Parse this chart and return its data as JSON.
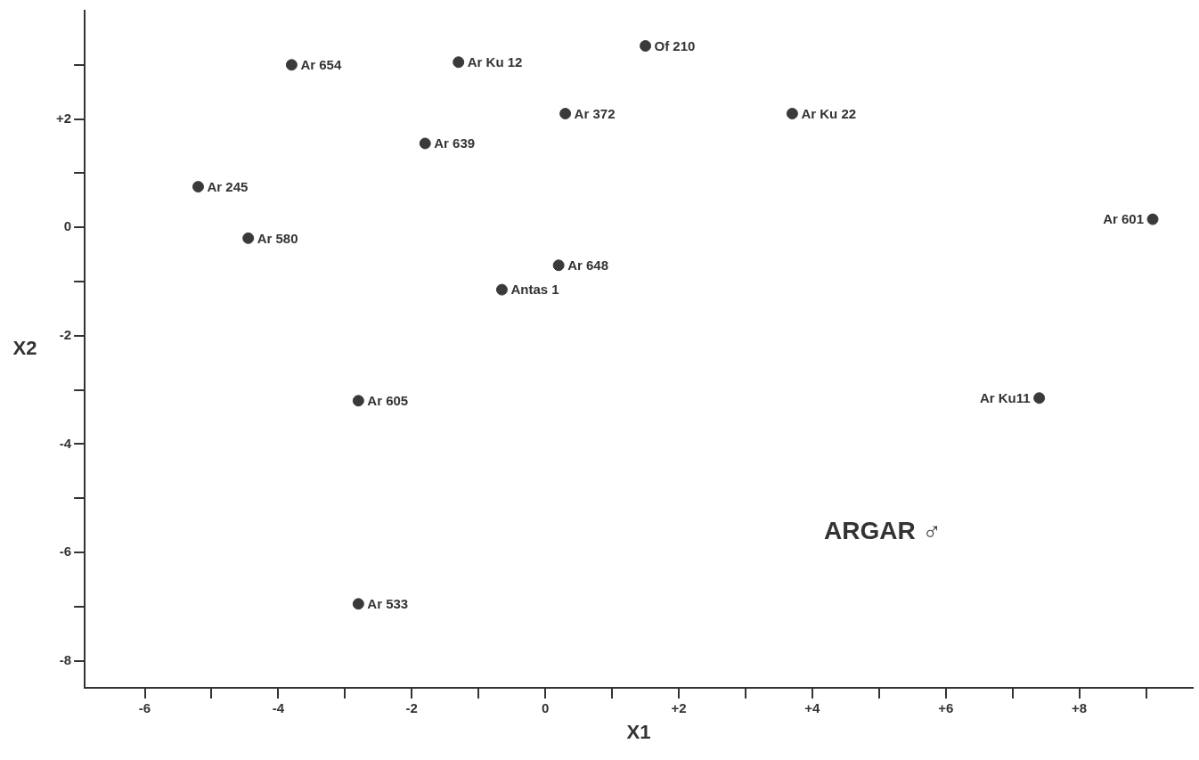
{
  "chart_data": {
    "type": "scatter",
    "xlabel": "X1",
    "ylabel": "X2",
    "xlim": [
      -6.9,
      9.7
    ],
    "ylim": [
      -8.5,
      4
    ],
    "xticks": [
      {
        "value": -6,
        "label": "-6"
      },
      {
        "value": -5,
        "label": null
      },
      {
        "value": -4,
        "label": "-4"
      },
      {
        "value": -3,
        "label": null
      },
      {
        "value": -2,
        "label": "-2"
      },
      {
        "value": -1,
        "label": null
      },
      {
        "value": 0,
        "label": "0"
      },
      {
        "value": 1,
        "label": null
      },
      {
        "value": 2,
        "label": "+2"
      },
      {
        "value": 3,
        "label": null
      },
      {
        "value": 4,
        "label": "+4"
      },
      {
        "value": 5,
        "label": null
      },
      {
        "value": 6,
        "label": "+6"
      },
      {
        "value": 7,
        "label": null
      },
      {
        "value": 8,
        "label": "+8"
      },
      {
        "value": 9,
        "label": null
      }
    ],
    "yticks": [
      {
        "value": -8,
        "label": "-8"
      },
      {
        "value": -7,
        "label": null
      },
      {
        "value": -6,
        "label": "-6"
      },
      {
        "value": -5,
        "label": null
      },
      {
        "value": -4,
        "label": "-4"
      },
      {
        "value": -3,
        "label": null
      },
      {
        "value": -2,
        "label": "-2"
      },
      {
        "value": -1,
        "label": null
      },
      {
        "value": 0,
        "label": "0"
      },
      {
        "value": 1,
        "label": null
      },
      {
        "value": 2,
        "label": "+2"
      },
      {
        "value": 3,
        "label": null
      }
    ],
    "grid": false,
    "legend": false,
    "marker": "circle",
    "annotations": [
      "ARGAR ♂"
    ],
    "series": [
      {
        "name": "Ar 654",
        "color": "#3a3a3a",
        "x": [
          -3.8
        ],
        "values": [
          3.0
        ]
      },
      {
        "name": "Ar Ku 12",
        "color": "#3a3a3a",
        "x": [
          -1.3
        ],
        "values": [
          3.05
        ]
      },
      {
        "name": "Of 210",
        "color": "#3a3a3a",
        "x": [
          1.5
        ],
        "values": [
          3.35
        ]
      },
      {
        "name": "Ar 372",
        "color": "#3a3a3a",
        "x": [
          0.3
        ],
        "values": [
          2.1
        ]
      },
      {
        "name": "Ar Ku 22",
        "color": "#3a3a3a",
        "x": [
          3.7
        ],
        "values": [
          2.1
        ]
      },
      {
        "name": "Ar 639",
        "color": "#3a3a3a",
        "x": [
          -1.8
        ],
        "values": [
          1.55
        ]
      },
      {
        "name": "Ar 245",
        "color": "#3a3a3a",
        "x": [
          -5.2
        ],
        "values": [
          0.75
        ]
      },
      {
        "name": "Ar 580",
        "color": "#3a3a3a",
        "x": [
          -4.45
        ],
        "values": [
          -0.2
        ]
      },
      {
        "name": "Ar 601",
        "color": "#3a3a3a",
        "x": [
          9.1
        ],
        "values": [
          0.15
        ]
      },
      {
        "name": "Ar 648",
        "color": "#3a3a3a",
        "x": [
          0.2
        ],
        "values": [
          -0.7
        ]
      },
      {
        "name": "Antas 1",
        "color": "#3a3a3a",
        "x": [
          -0.65
        ],
        "values": [
          -1.15
        ]
      },
      {
        "name": "Ar 605",
        "color": "#3a3a3a",
        "x": [
          -2.8
        ],
        "values": [
          -3.2
        ]
      },
      {
        "name": "Ar Ku11",
        "color": "#3a3a3a",
        "x": [
          7.4
        ],
        "values": [
          -3.15
        ]
      },
      {
        "name": "Ar 533",
        "color": "#3a3a3a",
        "x": [
          -2.8
        ],
        "values": [
          -6.95
        ]
      }
    ]
  }
}
